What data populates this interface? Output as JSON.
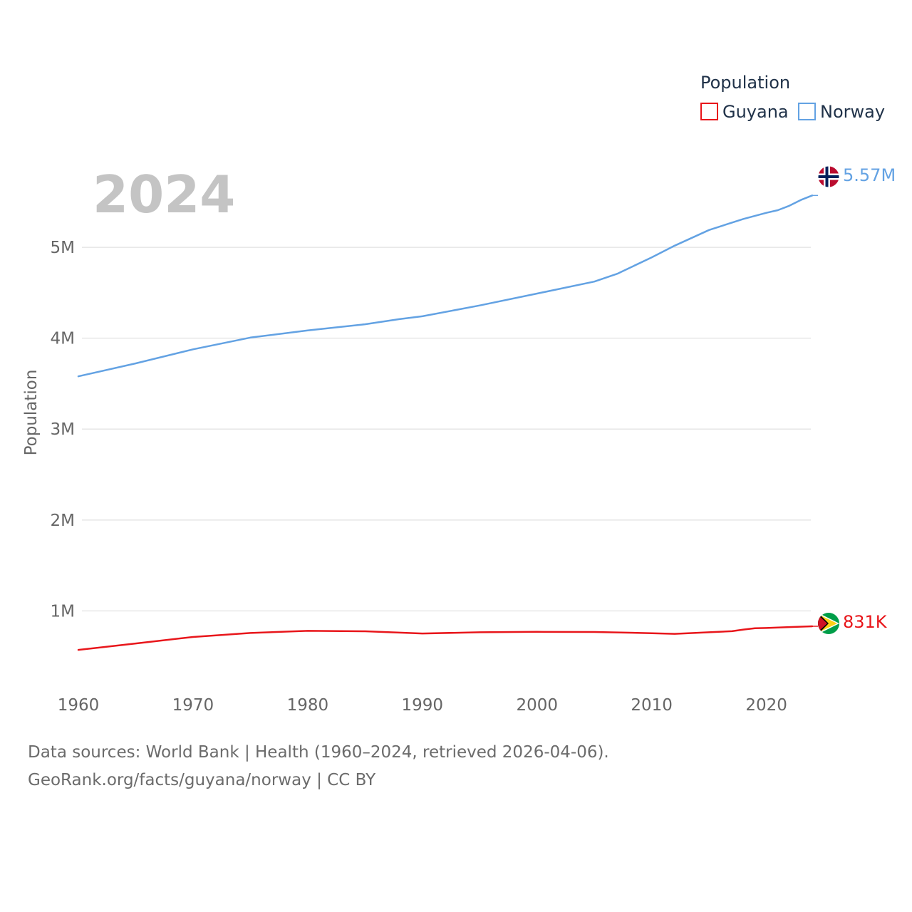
{
  "chart_data": {
    "type": "line",
    "ylabel": "Population",
    "year_label": "2024",
    "legend": {
      "title": "Population"
    },
    "x_ticks": [
      "1960",
      "1970",
      "1980",
      "1990",
      "2000",
      "2010",
      "2020"
    ],
    "y_ticks": [
      {
        "value": 1000000,
        "label": "1M"
      },
      {
        "value": 2000000,
        "label": "2M"
      },
      {
        "value": 3000000,
        "label": "3M"
      },
      {
        "value": 4000000,
        "label": "4M"
      },
      {
        "value": 5000000,
        "label": "5M"
      }
    ],
    "xlim": [
      1960,
      2024
    ],
    "ylim": [
      0,
      5800000
    ],
    "grid": true,
    "series": [
      {
        "name": "Guyana",
        "color": "#e8161b",
        "flag_icon": "guyana-flag-icon",
        "end_label": "831K",
        "x": [
          1960,
          1965,
          1970,
          1975,
          1980,
          1985,
          1990,
          1995,
          2000,
          2005,
          2010,
          2012,
          2015,
          2017,
          2018,
          2019,
          2020,
          2022,
          2024
        ],
        "values": [
          571000,
          642000,
          713000,
          757000,
          781000,
          776000,
          752000,
          765000,
          770000,
          768000,
          755000,
          748000,
          765000,
          777000,
          795000,
          810000,
          812000,
          822000,
          831000
        ]
      },
      {
        "name": "Norway",
        "color": "#63a2e3",
        "flag_icon": "norway-flag-icon",
        "end_label": "5.57M",
        "x": [
          1960,
          1965,
          1970,
          1975,
          1980,
          1985,
          1988,
          1990,
          1995,
          2000,
          2005,
          2007,
          2010,
          2012,
          2015,
          2018,
          2020,
          2021,
          2022,
          2023,
          2024
        ],
        "values": [
          3580000,
          3723000,
          3877000,
          4007000,
          4086000,
          4153000,
          4210000,
          4241000,
          4360000,
          4491000,
          4623000,
          4709000,
          4889000,
          5018000,
          5190000,
          5312000,
          5379000,
          5408000,
          5457000,
          5520000,
          5570000
        ]
      }
    ]
  },
  "footer": {
    "sources": "Data sources: World Bank | Health (1960–2024, retrieved 2026-04-06).",
    "url": "GeoRank.org/facts/guyana/norway | CC BY"
  }
}
